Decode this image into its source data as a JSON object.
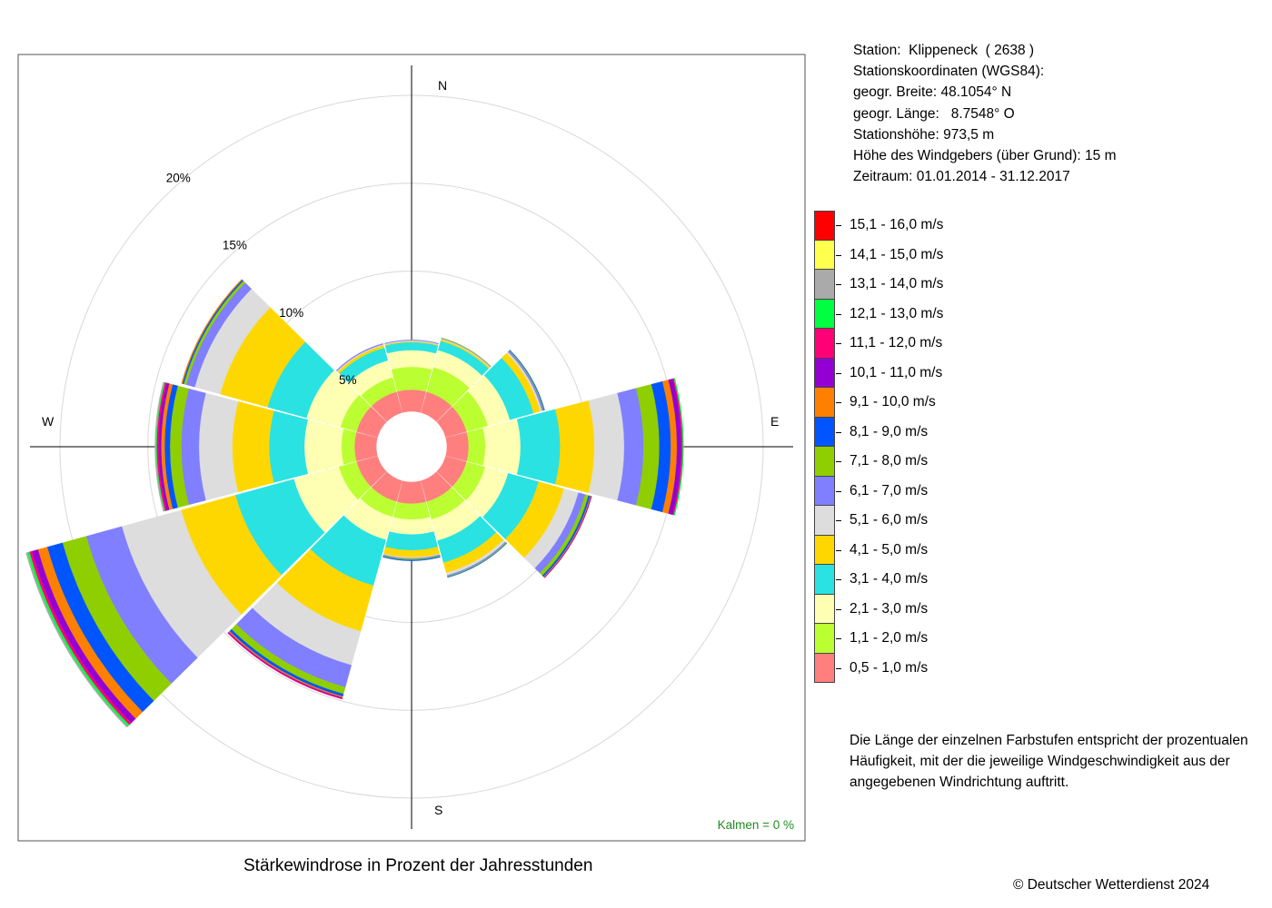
{
  "station_info": {
    "station": "Station:  Klippeneck  ( 2638 )",
    "coords_title": "Stationskoordinaten (WGS84):",
    "lat": "geogr. Breite: 48.1054° N",
    "lon": "geogr. Länge:   8.7548° O",
    "height": "Stationshöhe: 973,5 m",
    "sensor_height": "Höhe des Windgebers (über Grund): 15 m",
    "period": "Zeitraum: 01.01.2014 - 31.12.2017"
  },
  "legend": [
    {
      "label": "15,1 - 16,0 m/s",
      "color": "#ff0000"
    },
    {
      "label": "14,1 - 15,0 m/s",
      "color": "#ffff4d"
    },
    {
      "label": "13,1 - 14,0 m/s",
      "color": "#aaaaaa"
    },
    {
      "label": "12,1 - 13,0 m/s",
      "color": "#00ff40"
    },
    {
      "label": "11,1 - 12,0 m/s",
      "color": "#ff0077"
    },
    {
      "label": "10,1 - 11,0 m/s",
      "color": "#9400d3"
    },
    {
      "label": "9,1 - 10,0 m/s",
      "color": "#ff8000"
    },
    {
      "label": "8,1 - 9,0 m/s",
      "color": "#0055ff"
    },
    {
      "label": "7,1 - 8,0 m/s",
      "color": "#8fce00"
    },
    {
      "label": "6,1 - 7,0 m/s",
      "color": "#7f7fff"
    },
    {
      "label": "5,1 - 6,0 m/s",
      "color": "#dddddd"
    },
    {
      "label": "4,1 - 5,0 m/s",
      "color": "#ffd700"
    },
    {
      "label": "3,1 - 4,0 m/s",
      "color": "#2ae2e2"
    },
    {
      "label": "2,1 - 3,0 m/s",
      "color": "#ffffb3"
    },
    {
      "label": "1,1 - 2,0 m/s",
      "color": "#bbff33"
    },
    {
      "label": "0,5 - 1,0 m/s",
      "color": "#ff7f7f"
    }
  ],
  "note": "Die Länge der einzelnen Farbstufen entspricht der prozentualen Häufigkeit, mit der die jeweilige Windgeschwindigkeit aus der angegebenen Windrichtung auftritt.",
  "caption": "Stärkewindrose in Prozent der Jahresstunden",
  "copyright": "© Deutscher Wetterdienst  2024",
  "chart_data": {
    "type": "windrose",
    "title": "Stärkewindrose in Prozent der Jahresstunden",
    "calm_label": "Kalmen  =  0 %",
    "compass": [
      "N",
      "E",
      "S",
      "W"
    ],
    "ring_labels": [
      "5%",
      "10%",
      "15%",
      "20%"
    ],
    "rings": [
      5,
      10,
      15,
      20
    ],
    "directions_deg": [
      0,
      30,
      60,
      90,
      120,
      150,
      180,
      210,
      240,
      270,
      300,
      330
    ],
    "speed_classes": [
      "0,5 - 1,0 m/s",
      "1,1 - 2,0 m/s",
      "2,1 - 3,0 m/s",
      "3,1 - 4,0 m/s",
      "4,1 - 5,0 m/s",
      "5,1 - 6,0 m/s",
      "6,1 - 7,0 m/s",
      "7,1 - 8,0 m/s",
      "8,1 - 9,0 m/s",
      "9,1 - 10,0 m/s",
      "10,1 - 11,0 m/s",
      "11,1 - 12,0 m/s",
      "12,1 - 13,0 m/s",
      "13,1 - 14,0 m/s",
      "14,1 - 15,0 m/s",
      "15,1 - 16,0 m/s"
    ],
    "class_colors": [
      "#ff7f7f",
      "#bbff33",
      "#ffffb3",
      "#2ae2e2",
      "#ffd700",
      "#dddddd",
      "#7f7fff",
      "#8fce00",
      "#0055ff",
      "#ff8000",
      "#9400d3",
      "#ff0077",
      "#00ff40",
      "#aaaaaa",
      "#ffff4d",
      "#ff0000"
    ],
    "series_cumulative_pct": [
      {
        "dir": 0,
        "cum": [
          3.25,
          4.55,
          5.5,
          5.95,
          6.0,
          6.05,
          6.08
        ]
      },
      {
        "dir": 30,
        "cum": [
          3.25,
          4.7,
          5.7,
          6.25,
          6.33,
          6.38,
          6.41,
          6.43
        ]
      },
      {
        "dir": 60,
        "cum": [
          3.25,
          4.5,
          5.8,
          7.2,
          7.6,
          7.7,
          7.78,
          7.82,
          7.85
        ]
      },
      {
        "dir": 90,
        "cum": [
          3.25,
          4.2,
          6.2,
          8.45,
          10.4,
          12.1,
          13.2,
          14.1,
          14.75,
          15.1,
          15.35,
          15.42,
          15.47
        ]
      },
      {
        "dir": 120,
        "cum": [
          3.25,
          4.35,
          5.7,
          7.5,
          9.0,
          9.85,
          10.25,
          10.45,
          10.55,
          10.6,
          10.63
        ]
      },
      {
        "dir": 150,
        "cum": [
          3.25,
          4.3,
          5.55,
          6.85,
          7.45,
          7.6,
          7.66,
          7.7,
          7.72
        ]
      },
      {
        "dir": 180,
        "cum": [
          3.25,
          4.15,
          5.0,
          5.9,
          6.3,
          6.35,
          6.4,
          6.45,
          6.49
        ]
      },
      {
        "dir": 210,
        "cum": [
          3.25,
          4.15,
          5.5,
          8.2,
          10.9,
          12.9,
          14.2,
          14.6,
          14.75,
          14.82,
          14.87,
          14.9
        ]
      },
      {
        "dir": 240,
        "cum": [
          3.25,
          4.3,
          6.95,
          10.4,
          13.6,
          17.1,
          19.2,
          20.6,
          21.5,
          22.05,
          22.4,
          22.55,
          22.68,
          22.75
        ]
      },
      {
        "dir": 270,
        "cum": [
          3.25,
          4.0,
          6.1,
          8.1,
          10.2,
          12.1,
          13.1,
          13.75,
          14.05,
          14.25,
          14.4,
          14.5,
          14.55,
          14.6
        ]
      },
      {
        "dir": 300,
        "cum": [
          3.25,
          4.2,
          6.2,
          8.5,
          11.3,
          12.8,
          13.3,
          13.45,
          13.53,
          13.58
        ]
      },
      {
        "dir": 330,
        "cum": [
          3.25,
          4.1,
          5.1,
          5.85,
          6.0,
          6.05,
          6.1
        ]
      }
    ]
  }
}
